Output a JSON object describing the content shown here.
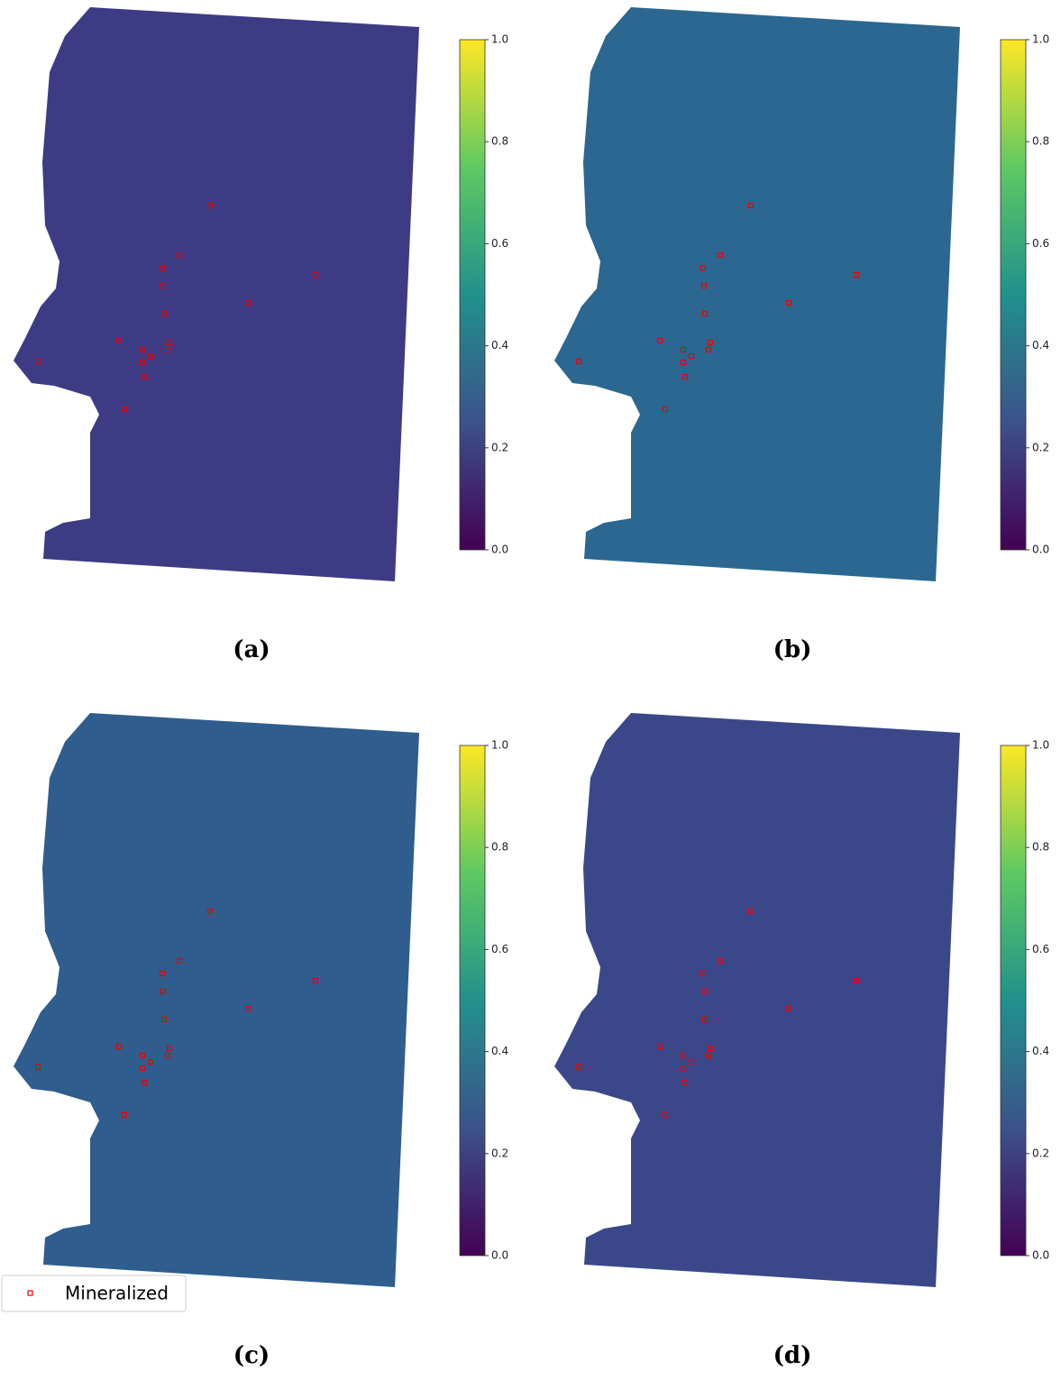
{
  "panels": [
    {
      "label": "(a)",
      "colorbar": {
        "lim": [
          0,
          1
        ],
        "ticks": [
          {
            "value": 0,
            "label": "0.0"
          },
          {
            "value": 0.2,
            "label": "0.2"
          },
          {
            "value": 0.4,
            "label": "0.4"
          },
          {
            "value": 0.6,
            "label": "0.6"
          },
          {
            "value": 0.8,
            "label": "0.8"
          },
          {
            "value": 1,
            "label": "1.0"
          }
        ]
      }
    },
    {
      "label": "(b)",
      "colorbar": {
        "lim": [
          0,
          1
        ],
        "ticks": [
          {
            "value": 0,
            "label": "0.0"
          },
          {
            "value": 0.2,
            "label": "0.2"
          },
          {
            "value": 0.4,
            "label": "0.4"
          },
          {
            "value": 0.6,
            "label": "0.6"
          },
          {
            "value": 0.8,
            "label": "0.8"
          },
          {
            "value": 1,
            "label": "1.0"
          }
        ]
      }
    },
    {
      "label": "(c)",
      "colorbar": {
        "lim": [
          0,
          1
        ],
        "ticks": [
          {
            "value": 0,
            "label": "0.0"
          },
          {
            "value": 0.2,
            "label": "0.2"
          },
          {
            "value": 0.4,
            "label": "0.4"
          },
          {
            "value": 0.6,
            "label": "0.6"
          },
          {
            "value": 0.8,
            "label": "0.8"
          },
          {
            "value": 1,
            "label": "1.0"
          }
        ]
      }
    },
    {
      "label": "(d)",
      "colorbar": {
        "lim": [
          0,
          1
        ],
        "ticks": [
          {
            "value": 0,
            "label": "0.0"
          },
          {
            "value": 0.2,
            "label": "0.2"
          },
          {
            "value": 0.4,
            "label": "0.4"
          },
          {
            "value": 0.6,
            "label": "0.6"
          },
          {
            "value": 0.8,
            "label": "0.8"
          },
          {
            "value": 1,
            "label": "1.0"
          }
        ]
      }
    }
  ],
  "legend": {
    "label": "Mineralized"
  }
}
